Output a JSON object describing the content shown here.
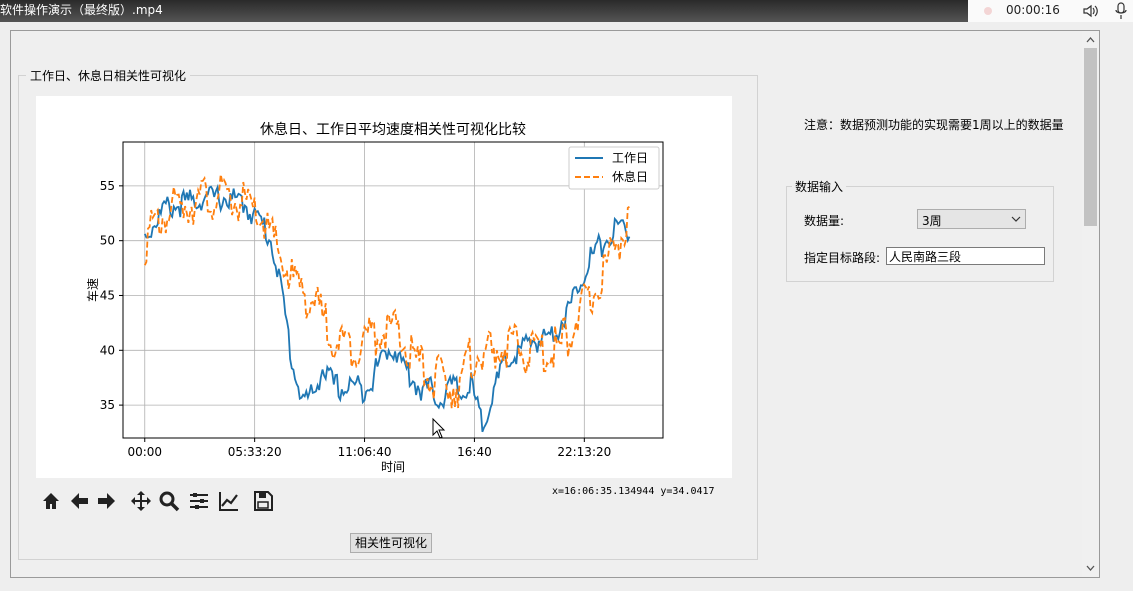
{
  "video": {
    "title": "软件操作演示（最终版）.mp4",
    "time": "00:00:16"
  },
  "viz_group": {
    "title": "工作日、休息日相关性可视化"
  },
  "toolbar": {
    "buttons": [
      "home-icon",
      "back-arrow-icon",
      "forward-arrow-icon",
      "pan-move-icon",
      "zoom-magnifier-icon",
      "subplots-config-icon",
      "axes-edit-icon",
      "save-disk-icon"
    ],
    "coords_readout": "x=16:06:35.134944 y=34.0417"
  },
  "viz_button_label": "相关性可视化",
  "notice": "注意：数据预测功能的实现需要1周以上的数据量",
  "input_group": {
    "title": "数据输入",
    "qty_label": "数据量:",
    "qty_value": "3周",
    "road_label": "指定目标路段:",
    "road_value": "人民南路三段"
  },
  "chart_data": {
    "type": "line",
    "title": "休息日、工作日平均速度相关性可视化比较",
    "xlabel": "时间",
    "ylabel": "车速",
    "xlim_hours": [
      -1.1,
      26.2
    ],
    "ylim": [
      32,
      59
    ],
    "x_ticks": [
      {
        "hour": 0,
        "label": "00:00"
      },
      {
        "hour": 5.5556,
        "label": "05:33:20"
      },
      {
        "hour": 11.1111,
        "label": "11:06:40"
      },
      {
        "hour": 16.6667,
        "label": "16:40"
      },
      {
        "hour": 22.2222,
        "label": "22:13:20"
      }
    ],
    "y_ticks": [
      35,
      40,
      45,
      50,
      55
    ],
    "grid": true,
    "legend_position": "top-right",
    "series": [
      {
        "name": "工作日",
        "color": "#1f77b4",
        "style": "solid",
        "hours": [
          0,
          1,
          2,
          3,
          4,
          5,
          5.5,
          6,
          6.5,
          7,
          7.5,
          8,
          8.5,
          9,
          9.5,
          10,
          10.5,
          11,
          11.5,
          12,
          12.5,
          13,
          13.5,
          14,
          14.5,
          15,
          15.5,
          16,
          16.5,
          17,
          17.5,
          18,
          18.5,
          19,
          19.5,
          20,
          20.5,
          21,
          21.5,
          22,
          22.5,
          23,
          23.5,
          24,
          24.5
        ],
        "values": [
          51,
          53.5,
          54,
          54.5,
          54.5,
          54,
          53,
          52,
          50,
          45,
          39,
          36,
          36.5,
          39,
          37.5,
          37,
          37.5,
          37,
          38,
          40,
          41,
          39.5,
          38,
          37,
          37,
          36,
          37.5,
          36.5,
          37.5,
          34,
          36,
          38.5,
          40,
          40.5,
          41.5,
          41.5,
          42,
          43,
          44.5,
          47,
          49,
          50,
          51,
          52,
          51.5
        ]
      },
      {
        "name": "休息日",
        "color": "#ff7f0e",
        "style": "dashed",
        "hours": [
          0,
          1,
          2,
          3,
          4,
          5,
          5.5,
          6,
          6.5,
          7,
          7.5,
          8,
          8.5,
          9,
          9.5,
          10,
          10.5,
          11,
          11.5,
          12,
          12.5,
          13,
          13.5,
          14,
          14.5,
          15,
          15.5,
          16,
          16.5,
          17,
          17.5,
          18,
          18.5,
          19,
          19.5,
          20,
          20.5,
          21,
          21.5,
          22,
          22.5,
          23,
          23.5,
          24,
          24.5
        ],
        "values": [
          51,
          53.5,
          54.5,
          55,
          55,
          54.5,
          53.5,
          53,
          51,
          49,
          47.5,
          46.5,
          45.5,
          44,
          42.5,
          41.5,
          41.5,
          42,
          42.5,
          43,
          43,
          42,
          40.5,
          39.5,
          38.5,
          38.5,
          38,
          38,
          40.5,
          41,
          40.5,
          41.5,
          41.5,
          41,
          41,
          41,
          41,
          41.5,
          43,
          44.5,
          45.5,
          47.5,
          49.5,
          51.5,
          52.5
        ]
      }
    ]
  }
}
